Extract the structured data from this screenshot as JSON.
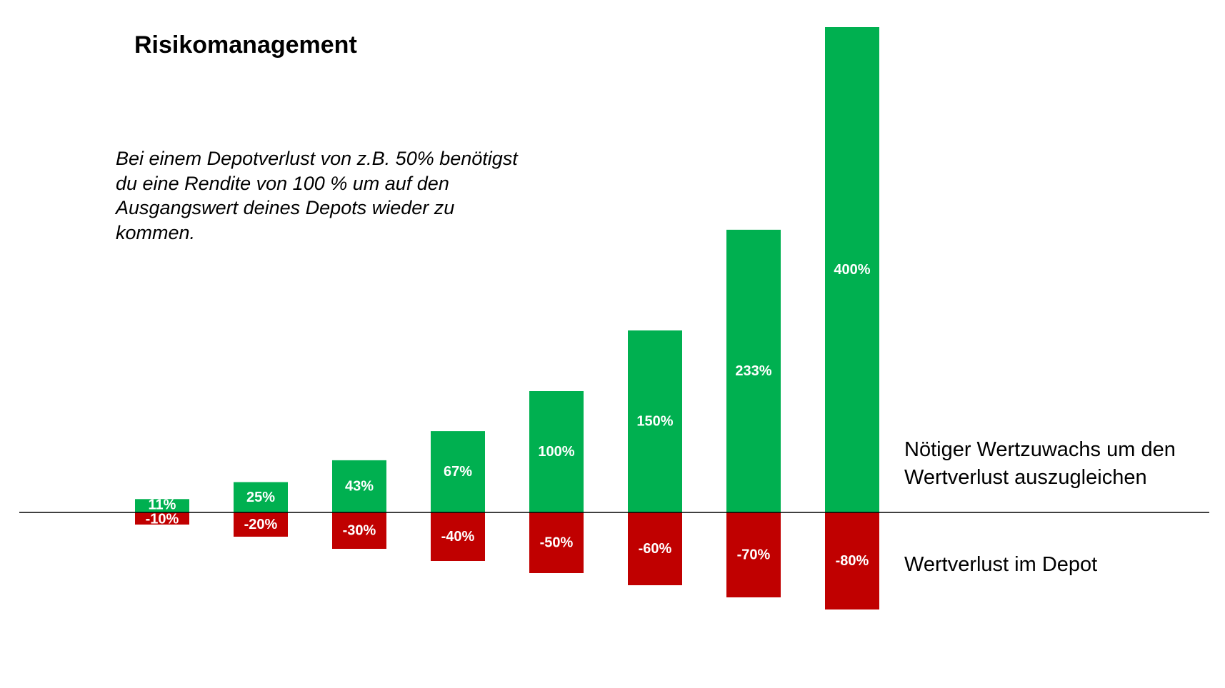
{
  "title": "Risikomanagement",
  "note_lines": [
    "Bei einem Depotverlust von z.B. 50% benötigst",
    "du eine Rendite von 100 % um auf den",
    "Ausgangswert deines Depots wieder zu",
    "kommen."
  ],
  "labels": {
    "gain_lines": [
      "Nötiger Wertzuwachs um den",
      "Wertverlust auszugleichen"
    ],
    "loss": "Wertverlust im Depot"
  },
  "colors": {
    "gain": "#00B050",
    "loss": "#C00000",
    "axis": "#000000"
  },
  "chart_data": {
    "type": "bar",
    "title": "Risikomanagement",
    "xlabel": "",
    "ylabel": "",
    "ylim": [
      -80,
      400
    ],
    "grid": false,
    "categories": [
      "1",
      "2",
      "3",
      "4",
      "5",
      "6",
      "7",
      "8"
    ],
    "series": [
      {
        "name": "Nötiger Wertzuwachs um den Wertverlust auszugleichen",
        "values": [
          11,
          25,
          43,
          67,
          100,
          150,
          233,
          400
        ],
        "labels": [
          "11%",
          "25%",
          "43%",
          "67%",
          "100%",
          "150%",
          "233%",
          "400%"
        ]
      },
      {
        "name": "Wertverlust im Depot",
        "values": [
          -10,
          -20,
          -30,
          -40,
          -50,
          -60,
          -70,
          -80
        ],
        "labels": [
          "-10%",
          "-20%",
          "-30%",
          "-40%",
          "-50%",
          "-60%",
          "-70%",
          "-80%"
        ]
      }
    ],
    "legend": "right"
  }
}
